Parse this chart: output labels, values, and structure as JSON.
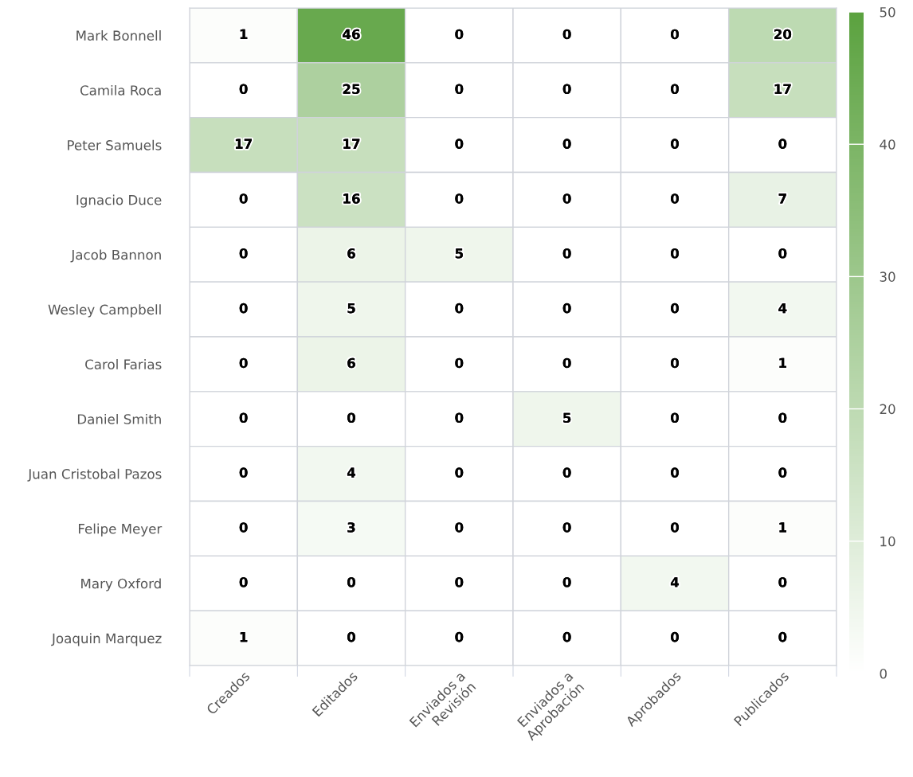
{
  "chart_data": {
    "type": "heatmap",
    "categories": [
      "Creados",
      "Editados",
      "Enviados a\nRevisión",
      "Enviados a\nAprobación",
      "Aprobados",
      "Publicados"
    ],
    "y_categories": [
      "Mark Bonnell",
      "Camila Roca",
      "Peter Samuels",
      "Ignacio Duce",
      "Jacob Bannon",
      "Wesley Campbell",
      "Carol Farias",
      "Daniel Smith",
      "Juan Cristobal Pazos",
      "Felipe Meyer",
      "Mary Oxford",
      "Joaquin Marquez"
    ],
    "cells": [
      [
        1,
        46,
        0,
        0,
        0,
        20
      ],
      [
        0,
        25,
        0,
        0,
        0,
        17
      ],
      [
        17,
        17,
        0,
        0,
        0,
        0
      ],
      [
        0,
        16,
        0,
        0,
        0,
        7
      ],
      [
        0,
        6,
        5,
        0,
        0,
        0
      ],
      [
        0,
        5,
        0,
        0,
        0,
        4
      ],
      [
        0,
        6,
        0,
        0,
        0,
        1
      ],
      [
        0,
        0,
        0,
        5,
        0,
        0
      ],
      [
        0,
        4,
        0,
        0,
        0,
        0
      ],
      [
        0,
        3,
        0,
        0,
        0,
        1
      ],
      [
        0,
        0,
        0,
        0,
        4,
        0
      ],
      [
        1,
        0,
        0,
        0,
        0,
        0
      ]
    ],
    "colors": [
      "#ffffff",
      "#5ba23f"
    ],
    "clim": [
      0,
      50
    ],
    "cticks": [
      0,
      10,
      20,
      30,
      40,
      50
    ],
    "data_labels": true
  }
}
